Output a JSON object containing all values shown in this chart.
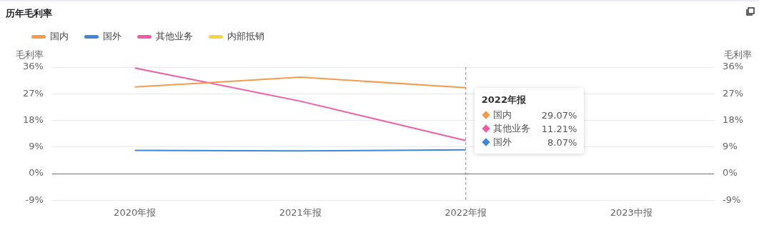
{
  "chart_data": {
    "type": "line",
    "title": "历年毛利率",
    "ylabel": "毛利率",
    "y2label": "毛利率",
    "categories": [
      "2020年报",
      "2021年报",
      "2022年报",
      "2023中报"
    ],
    "series": [
      {
        "name": "国内",
        "color": "#f29b4c",
        "values": [
          29.3,
          32.6,
          29.07,
          null
        ]
      },
      {
        "name": "国外",
        "color": "#3f86d6",
        "values": [
          7.9,
          7.7,
          8.07,
          null
        ]
      },
      {
        "name": "其他业务",
        "color": "#f05ba3",
        "values": [
          35.7,
          24.5,
          11.21,
          null
        ]
      },
      {
        "name": "内部抵销",
        "color": "#f2d44c",
        "values": [
          null,
          null,
          null,
          null
        ]
      }
    ],
    "ylim": [
      -9,
      36
    ],
    "yticks": [
      {
        "value": -9,
        "label": "-9%"
      },
      {
        "value": 0,
        "label": "0%"
      },
      {
        "value": 9,
        "label": "9%"
      },
      {
        "value": 18,
        "label": "18%"
      },
      {
        "value": 27,
        "label": "27%"
      },
      {
        "value": 36,
        "label": "36%"
      }
    ],
    "y2lim": [
      -9,
      36
    ],
    "y2ticks": [
      {
        "value": -9,
        "label": "-9%"
      },
      {
        "value": 0,
        "label": "0%"
      },
      {
        "value": 9,
        "label": "9%"
      },
      {
        "value": 18,
        "label": "18%"
      },
      {
        "value": 27,
        "label": "27%"
      },
      {
        "value": 36,
        "label": "36%"
      }
    ],
    "grid": "y",
    "legend": "top left",
    "marker": "none",
    "line_style": "solid",
    "ref_lines": [
      {
        "axis": "x",
        "value": "2022年报",
        "color": "#8a8aa0",
        "line_style": "dashed"
      }
    ],
    "annotations": [
      "29.07%",
      "11.21%",
      "8.07%"
    ]
  }
}
